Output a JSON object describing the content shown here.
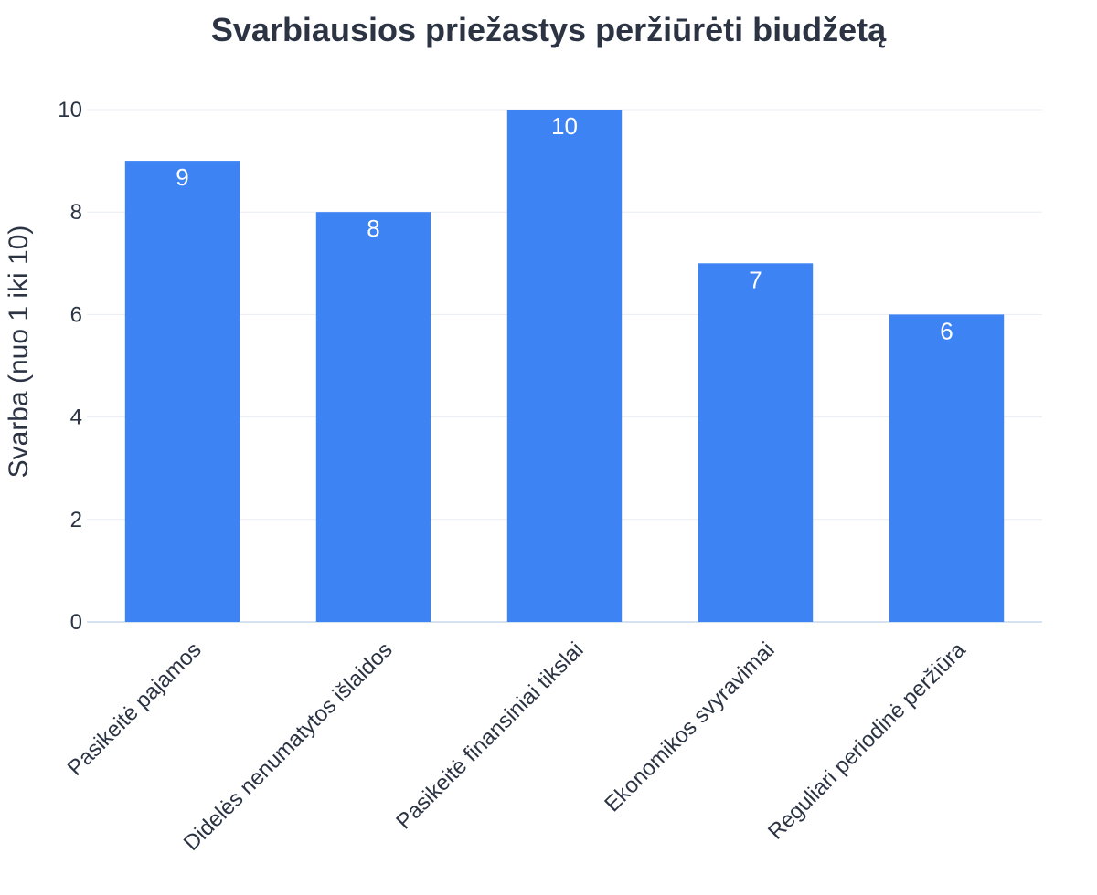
{
  "chart_data": {
    "type": "bar",
    "title": "Svarbiausios priežastys peržiūrėti biudžetą",
    "xlabel": "",
    "ylabel": "Svarba (nuo 1 iki 10)",
    "categories": [
      "Pasikeitė pajamos",
      "Didelės nenumatytos išlaidos",
      "Pasikeitė finansiniai tikslai",
      "Ekonomikos svyravimai",
      "Reguliari periodinė peržiūra"
    ],
    "values": [
      9,
      8,
      10,
      7,
      6
    ],
    "data_labels": [
      "9",
      "8",
      "10",
      "7",
      "6"
    ],
    "ylim": [
      0,
      10
    ],
    "yticks": [
      0,
      2,
      4,
      6,
      8,
      10
    ],
    "ytick_labels": [
      "0",
      "2",
      "4",
      "6",
      "8",
      "10"
    ],
    "grid": true,
    "legend": "none",
    "colors": {
      "bar": "#3d83f4",
      "title": "#2c3444",
      "value_label": "#ffffff"
    }
  }
}
